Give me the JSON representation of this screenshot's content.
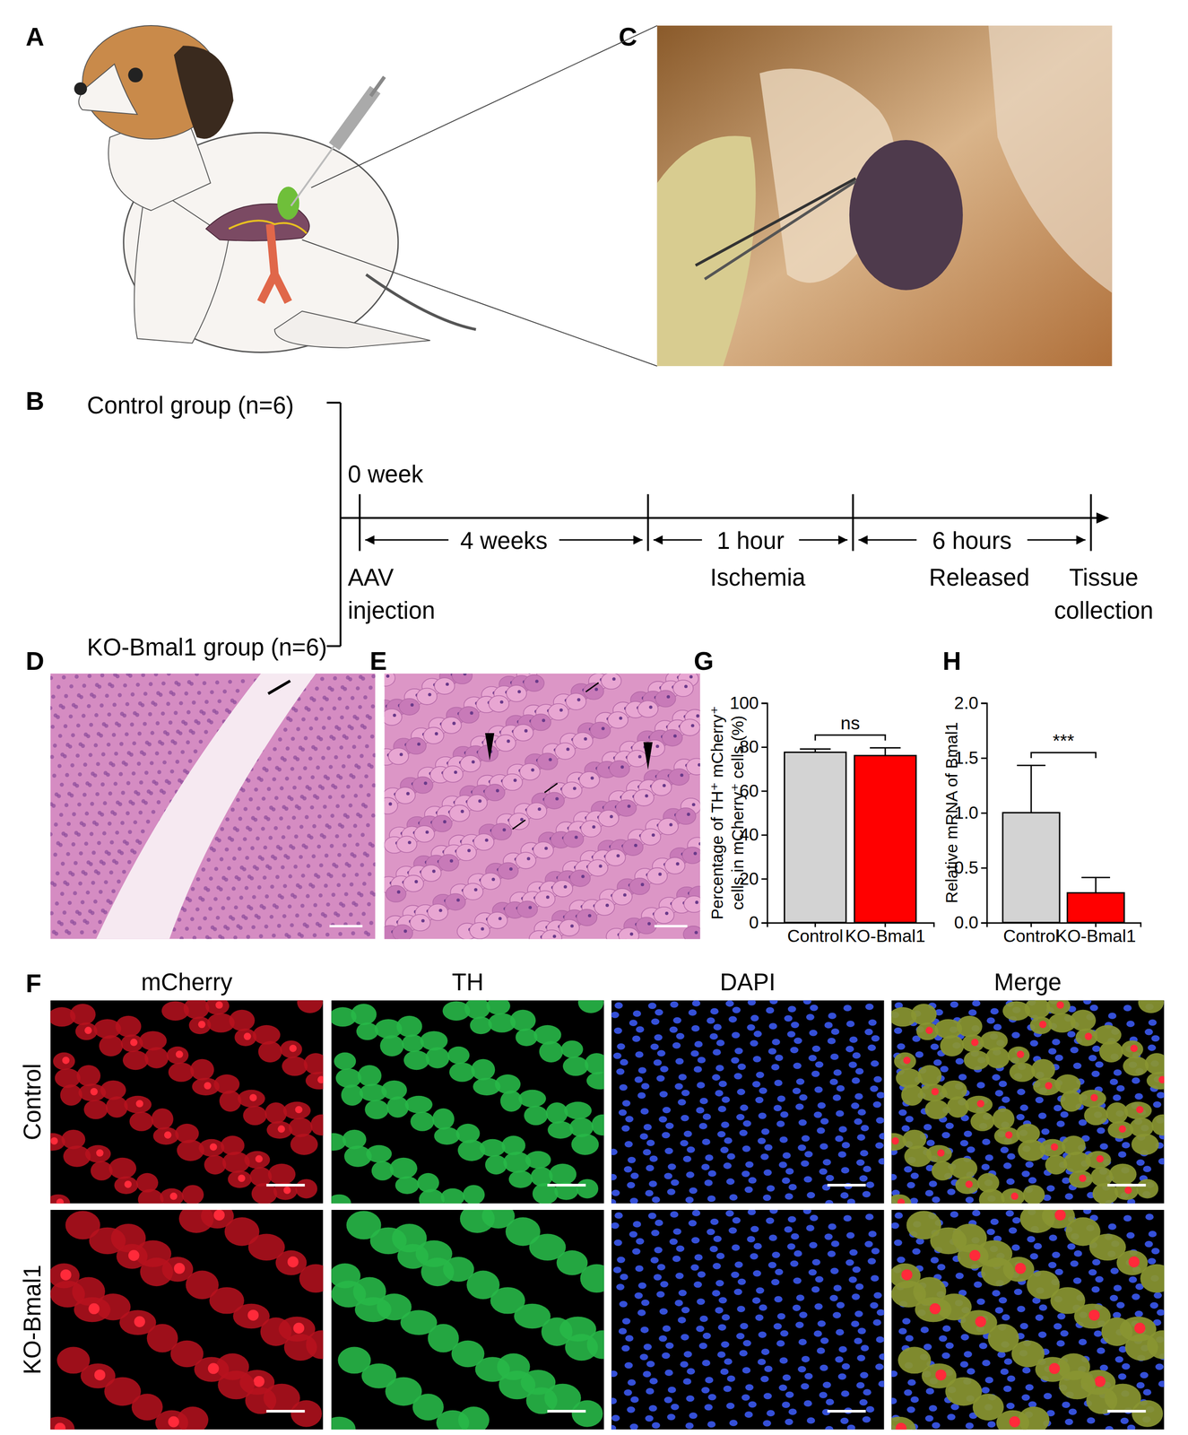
{
  "figure": {
    "panel_labels": [
      "A",
      "B",
      "C",
      "D",
      "E",
      "F",
      "G",
      "H"
    ],
    "timeline": {
      "groups": [
        "Control group (n=6)",
        "KO-Bmal1 group (n=6)"
      ],
      "start": "0 week",
      "durations": [
        "4 weeks",
        "1 hour",
        "6 hours"
      ],
      "events": [
        [
          "AAV",
          "injection"
        ],
        [
          "Ischemia"
        ],
        [
          "Released"
        ],
        [
          "Tissue",
          "collection"
        ]
      ]
    },
    "fluorescence": {
      "channels": [
        "mCherry",
        "TH",
        "DAPI",
        "Merge"
      ],
      "rows": [
        "Control",
        "KO-Bmal1"
      ]
    }
  },
  "chart_data": [
    {
      "type": "bar",
      "y_label": [
        "Percentage of TH⁺ mCherry⁺",
        "cells in mCherry⁺ cells (%)"
      ],
      "categories": [
        "Control",
        "KO-Bmal1"
      ],
      "values": [
        77.5,
        76
      ],
      "errors": [
        1.5,
        3.5
      ],
      "colors": [
        "#d3d3d3",
        "#ff0000"
      ],
      "ylim": [
        0,
        100
      ],
      "yticks": [
        0,
        20,
        40,
        60,
        80,
        100
      ],
      "annotation": "ns"
    },
    {
      "type": "bar",
      "y_label": [
        "Relative mRNA of Bmal1"
      ],
      "categories": [
        "Control",
        "KO-Bmal1"
      ],
      "values": [
        1.0,
        0.27
      ],
      "errors": [
        0.43,
        0.14
      ],
      "colors": [
        "#d3d3d3",
        "#ff0000"
      ],
      "ylim": [
        0,
        2.0
      ],
      "yticks": [
        {
          "value": 0,
          "label": "0.0"
        },
        {
          "value": 0.5,
          "label": "0.5"
        },
        {
          "value": 1.0,
          "label": "1.0"
        },
        {
          "value": 1.5,
          "label": "1.5"
        },
        {
          "value": 2.0,
          "label": "2.0"
        }
      ],
      "annotation": "***"
    }
  ]
}
